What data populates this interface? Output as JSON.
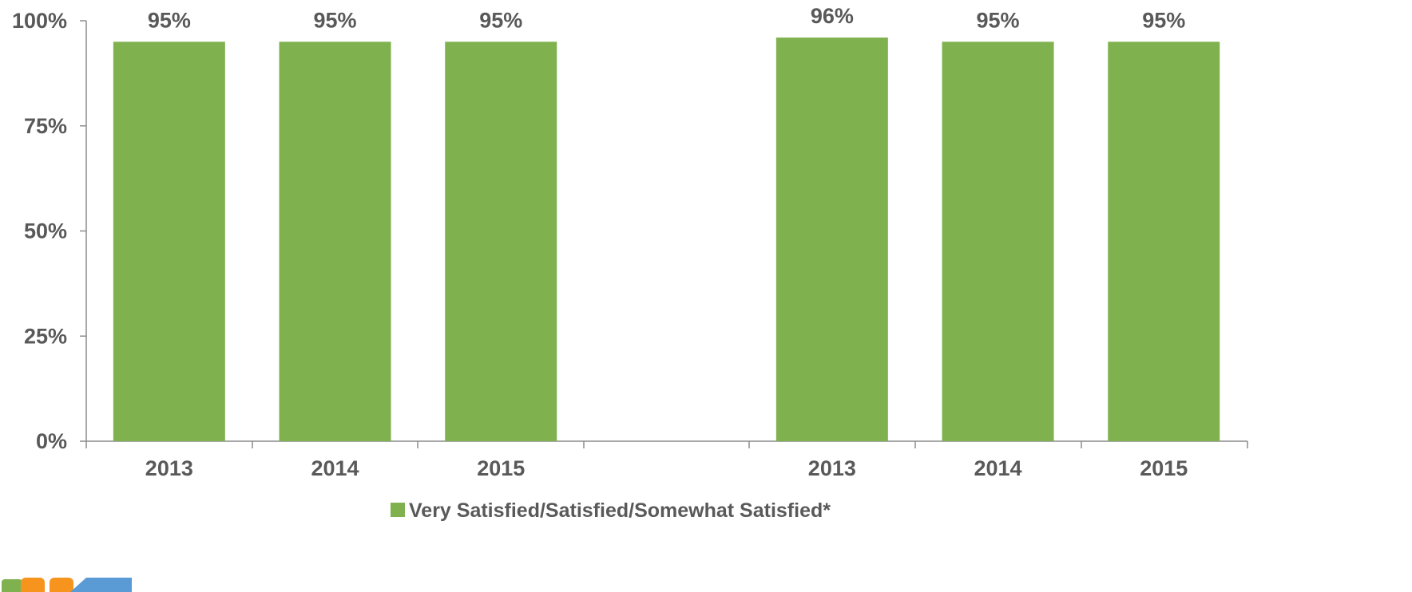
{
  "chart_data": {
    "type": "bar",
    "groups": [
      {
        "categories": [
          "2013",
          "2014",
          "2015"
        ],
        "values": [
          95,
          95,
          95
        ]
      },
      {
        "categories": [
          "2013",
          "2014",
          "2015"
        ],
        "values": [
          96,
          95,
          95
        ]
      }
    ],
    "data_labels": [
      [
        "95%",
        "95%",
        "95%"
      ],
      [
        "96%",
        "95%",
        "95%"
      ]
    ],
    "series": [
      {
        "name": "Very Satisfied/Satisfied/Somewhat Satisfied*",
        "color": "#7fb24f"
      }
    ],
    "yticks": [
      "0%",
      "25%",
      "50%",
      "75%",
      "100%"
    ],
    "ylim": [
      0,
      100
    ],
    "grid": false,
    "legend_position": "bottom-center"
  },
  "logo": {
    "colors": [
      "#7fb24f",
      "#f7941d",
      "#5b9bd5"
    ]
  }
}
